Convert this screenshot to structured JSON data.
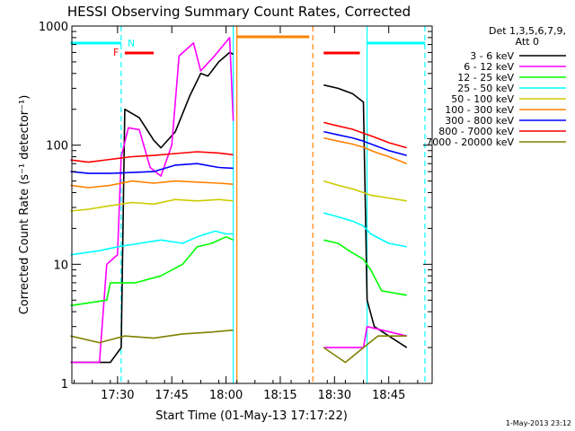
{
  "chart_data": {
    "type": "line",
    "title": "HESSI Observing Summary Count Rates, Corrected",
    "xlabel": "Start Time (01-May-13 17:17:22)",
    "ylabel": "Corrected Count Rate (s⁻¹ detector⁻¹)",
    "xlim": [
      "17:17:22",
      "18:57:00"
    ],
    "ylim": [
      1,
      1000
    ],
    "y_scale": "log",
    "x_ticks": [
      "17:30",
      "17:45",
      "18:00",
      "18:15",
      "18:30",
      "18:45"
    ],
    "y_ticks": [
      "1",
      "10",
      "100",
      "1000"
    ],
    "legend_title": "Det 1,3,5,6,7,9,",
    "legend_subtitle": "Att 0",
    "timestamp": "1-May-2013 23:12",
    "flag_labels": [
      "F",
      "N"
    ],
    "series": [
      {
        "name": "3 - 6 keV",
        "color": "#000000",
        "points": [
          [
            "17:17",
            "1.5"
          ],
          [
            "17:23",
            "1.5"
          ],
          [
            "17:28",
            "1.5"
          ],
          [
            "17:31",
            "2"
          ],
          [
            "17:32",
            "200"
          ],
          [
            "17:36",
            "170"
          ],
          [
            "17:40",
            "110"
          ],
          [
            "17:42",
            "95"
          ],
          [
            "17:46",
            "130"
          ],
          [
            "17:50",
            "260"
          ],
          [
            "17:53",
            "400"
          ],
          [
            "17:55",
            "380"
          ],
          [
            "17:58",
            "500"
          ],
          [
            "18:01",
            "600"
          ],
          [
            "18:02",
            "580"
          ]
        ]
      },
      {
        "name": "6 - 12 keV",
        "color": "#ff00ff",
        "points": [
          [
            "17:17",
            "1.5"
          ],
          [
            "17:25",
            "1.5"
          ],
          [
            "17:27",
            "10"
          ],
          [
            "17:30",
            "12"
          ],
          [
            "17:31",
            "80"
          ],
          [
            "17:33",
            "140"
          ],
          [
            "17:36",
            "135"
          ],
          [
            "17:39",
            "65"
          ],
          [
            "17:42",
            "55"
          ],
          [
            "17:45",
            "100"
          ],
          [
            "17:47",
            "560"
          ],
          [
            "17:51",
            "720"
          ],
          [
            "17:53",
            "420"
          ],
          [
            "17:57",
            "570"
          ],
          [
            "18:01",
            "800"
          ],
          [
            "18:02",
            "160"
          ]
        ]
      },
      {
        "name": "12 - 25 keV",
        "color": "#00ff00",
        "points": [
          [
            "17:17",
            "4.5"
          ],
          [
            "17:27",
            "5"
          ],
          [
            "17:28",
            "7"
          ],
          [
            "17:35",
            "7"
          ],
          [
            "17:42",
            "8"
          ],
          [
            "17:48",
            "10"
          ],
          [
            "17:52",
            "14"
          ],
          [
            "17:56",
            "15"
          ],
          [
            "18:00",
            "17"
          ],
          [
            "18:02",
            "16"
          ]
        ]
      },
      {
        "name": "25 - 50 keV",
        "color": "#00ffff",
        "points": [
          [
            "17:17",
            "12"
          ],
          [
            "17:25",
            "13"
          ],
          [
            "17:30",
            "14"
          ],
          [
            "17:36",
            "15"
          ],
          [
            "17:42",
            "16"
          ],
          [
            "17:48",
            "15"
          ],
          [
            "17:52",
            "17"
          ],
          [
            "17:57",
            "19"
          ],
          [
            "18:00",
            "18"
          ],
          [
            "18:02",
            "18"
          ]
        ]
      },
      {
        "name": "50 - 100 keV",
        "color": "#cccc00",
        "points": [
          [
            "17:17",
            "28"
          ],
          [
            "17:22",
            "29"
          ],
          [
            "17:28",
            "31"
          ],
          [
            "17:34",
            "33"
          ],
          [
            "17:40",
            "32"
          ],
          [
            "17:46",
            "35"
          ],
          [
            "17:52",
            "34"
          ],
          [
            "17:58",
            "35"
          ],
          [
            "18:02",
            "34"
          ]
        ]
      },
      {
        "name": "100 - 300 keV",
        "color": "#ff8000",
        "points": [
          [
            "17:17",
            "46"
          ],
          [
            "17:22",
            "44"
          ],
          [
            "17:28",
            "46"
          ],
          [
            "17:34",
            "50"
          ],
          [
            "17:40",
            "48"
          ],
          [
            "17:46",
            "50"
          ],
          [
            "17:52",
            "49"
          ],
          [
            "17:58",
            "48"
          ],
          [
            "18:02",
            "47"
          ]
        ]
      },
      {
        "name": "300 - 800 keV",
        "color": "#0000ff",
        "points": [
          [
            "17:17",
            "60"
          ],
          [
            "17:22",
            "58"
          ],
          [
            "17:28",
            "58"
          ],
          [
            "17:34",
            "59"
          ],
          [
            "17:40",
            "60"
          ],
          [
            "17:46",
            "68"
          ],
          [
            "17:52",
            "70"
          ],
          [
            "17:58",
            "65"
          ],
          [
            "18:02",
            "64"
          ]
        ]
      },
      {
        "name": "800 - 7000 keV",
        "color": "#ff0000",
        "points": [
          [
            "17:17",
            "75"
          ],
          [
            "17:22",
            "72"
          ],
          [
            "17:28",
            "76"
          ],
          [
            "17:34",
            "80"
          ],
          [
            "17:40",
            "82"
          ],
          [
            "17:46",
            "85"
          ],
          [
            "17:52",
            "88"
          ],
          [
            "17:58",
            "86"
          ],
          [
            "18:02",
            "83"
          ]
        ]
      },
      {
        "name": "7000 - 20000 keV",
        "color": "#808000",
        "points": [
          [
            "17:17",
            "2.5"
          ],
          [
            "17:25",
            "2.2"
          ],
          [
            "17:32",
            "2.5"
          ],
          [
            "17:40",
            "2.4"
          ],
          [
            "17:48",
            "2.6"
          ],
          [
            "17:56",
            "2.7"
          ],
          [
            "18:02",
            "2.8"
          ]
        ]
      }
    ],
    "series_after_gap": [
      {
        "name": "3 - 6 keV",
        "points": [
          [
            "18:27",
            "320"
          ],
          [
            "18:31",
            "300"
          ],
          [
            "18:35",
            "270"
          ],
          [
            "18:38",
            "230"
          ],
          [
            "18:39",
            "5"
          ],
          [
            "18:41",
            "3"
          ],
          [
            "18:50",
            "2"
          ]
        ]
      },
      {
        "name": "6 - 12 keV",
        "points": [
          [
            "18:27",
            "2"
          ],
          [
            "18:38",
            "2"
          ],
          [
            "18:39",
            "3"
          ],
          [
            "18:50",
            "2.5"
          ]
        ]
      },
      {
        "name": "12 - 25 keV",
        "points": [
          [
            "18:27",
            "16"
          ],
          [
            "18:31",
            "15"
          ],
          [
            "18:34",
            "13"
          ],
          [
            "18:38",
            "11"
          ],
          [
            "18:40",
            "9"
          ],
          [
            "18:43",
            "6"
          ],
          [
            "18:50",
            "5.5"
          ]
        ]
      },
      {
        "name": "25 - 50 keV",
        "points": [
          [
            "18:27",
            "27"
          ],
          [
            "18:31",
            "25"
          ],
          [
            "18:35",
            "23"
          ],
          [
            "18:38",
            "21"
          ],
          [
            "18:40",
            "18"
          ],
          [
            "18:45",
            "15"
          ],
          [
            "18:50",
            "14"
          ]
        ]
      },
      {
        "name": "50 - 100 keV",
        "points": [
          [
            "18:27",
            "50"
          ],
          [
            "18:31",
            "46"
          ],
          [
            "18:35",
            "43"
          ],
          [
            "18:38",
            "40"
          ],
          [
            "18:40",
            "38"
          ],
          [
            "18:45",
            "36"
          ],
          [
            "18:50",
            "34"
          ]
        ]
      },
      {
        "name": "100 - 300 keV",
        "points": [
          [
            "18:27",
            "115"
          ],
          [
            "18:31",
            "108"
          ],
          [
            "18:35",
            "102"
          ],
          [
            "18:38",
            "96"
          ],
          [
            "18:41",
            "88"
          ],
          [
            "18:45",
            "80"
          ],
          [
            "18:50",
            "70"
          ]
        ]
      },
      {
        "name": "300 - 800 keV",
        "points": [
          [
            "18:27",
            "130"
          ],
          [
            "18:31",
            "122"
          ],
          [
            "18:35",
            "115"
          ],
          [
            "18:38",
            "108"
          ],
          [
            "18:41",
            "100"
          ],
          [
            "18:45",
            "90"
          ],
          [
            "18:50",
            "82"
          ]
        ]
      },
      {
        "name": "800 - 7000 keV",
        "points": [
          [
            "18:27",
            "155"
          ],
          [
            "18:31",
            "145"
          ],
          [
            "18:35",
            "136"
          ],
          [
            "18:38",
            "126"
          ],
          [
            "18:41",
            "117"
          ],
          [
            "18:45",
            "105"
          ],
          [
            "18:50",
            "95"
          ]
        ]
      },
      {
        "name": "7000 - 20000 keV",
        "points": [
          [
            "18:27",
            "2"
          ],
          [
            "18:33",
            "1.5"
          ],
          [
            "18:38",
            "2"
          ],
          [
            "18:42",
            "2.5"
          ],
          [
            "18:50",
            "2.5"
          ]
        ]
      }
    ],
    "flags": [
      {
        "label": "N",
        "color": "#00ffff",
        "ranges": [
          [
            "17:17",
            "17:31"
          ],
          [
            "18:39",
            "18:55"
          ]
        ]
      },
      {
        "label": "F",
        "color": "#ff0000",
        "ranges": [
          [
            "17:32",
            "17:40"
          ],
          [
            "18:27",
            "18:37"
          ]
        ]
      },
      {
        "label": "",
        "color": "#ff8000",
        "ranges": [
          [
            "18:03",
            "18:23"
          ]
        ]
      }
    ],
    "markers": [
      {
        "time": "17:31",
        "color": "#00ffff",
        "style": "dashed"
      },
      {
        "time": "18:02",
        "color": "#00ffff",
        "style": "solid"
      },
      {
        "time": "18:03",
        "color": "#ff8000",
        "style": "solid"
      },
      {
        "time": "18:24",
        "color": "#ff8000",
        "style": "dashed"
      },
      {
        "time": "18:39",
        "color": "#00ffff",
        "style": "solid"
      },
      {
        "time": "18:55",
        "color": "#00ffff",
        "style": "dashed"
      }
    ],
    "grid": false,
    "legend_position": "top-right"
  }
}
